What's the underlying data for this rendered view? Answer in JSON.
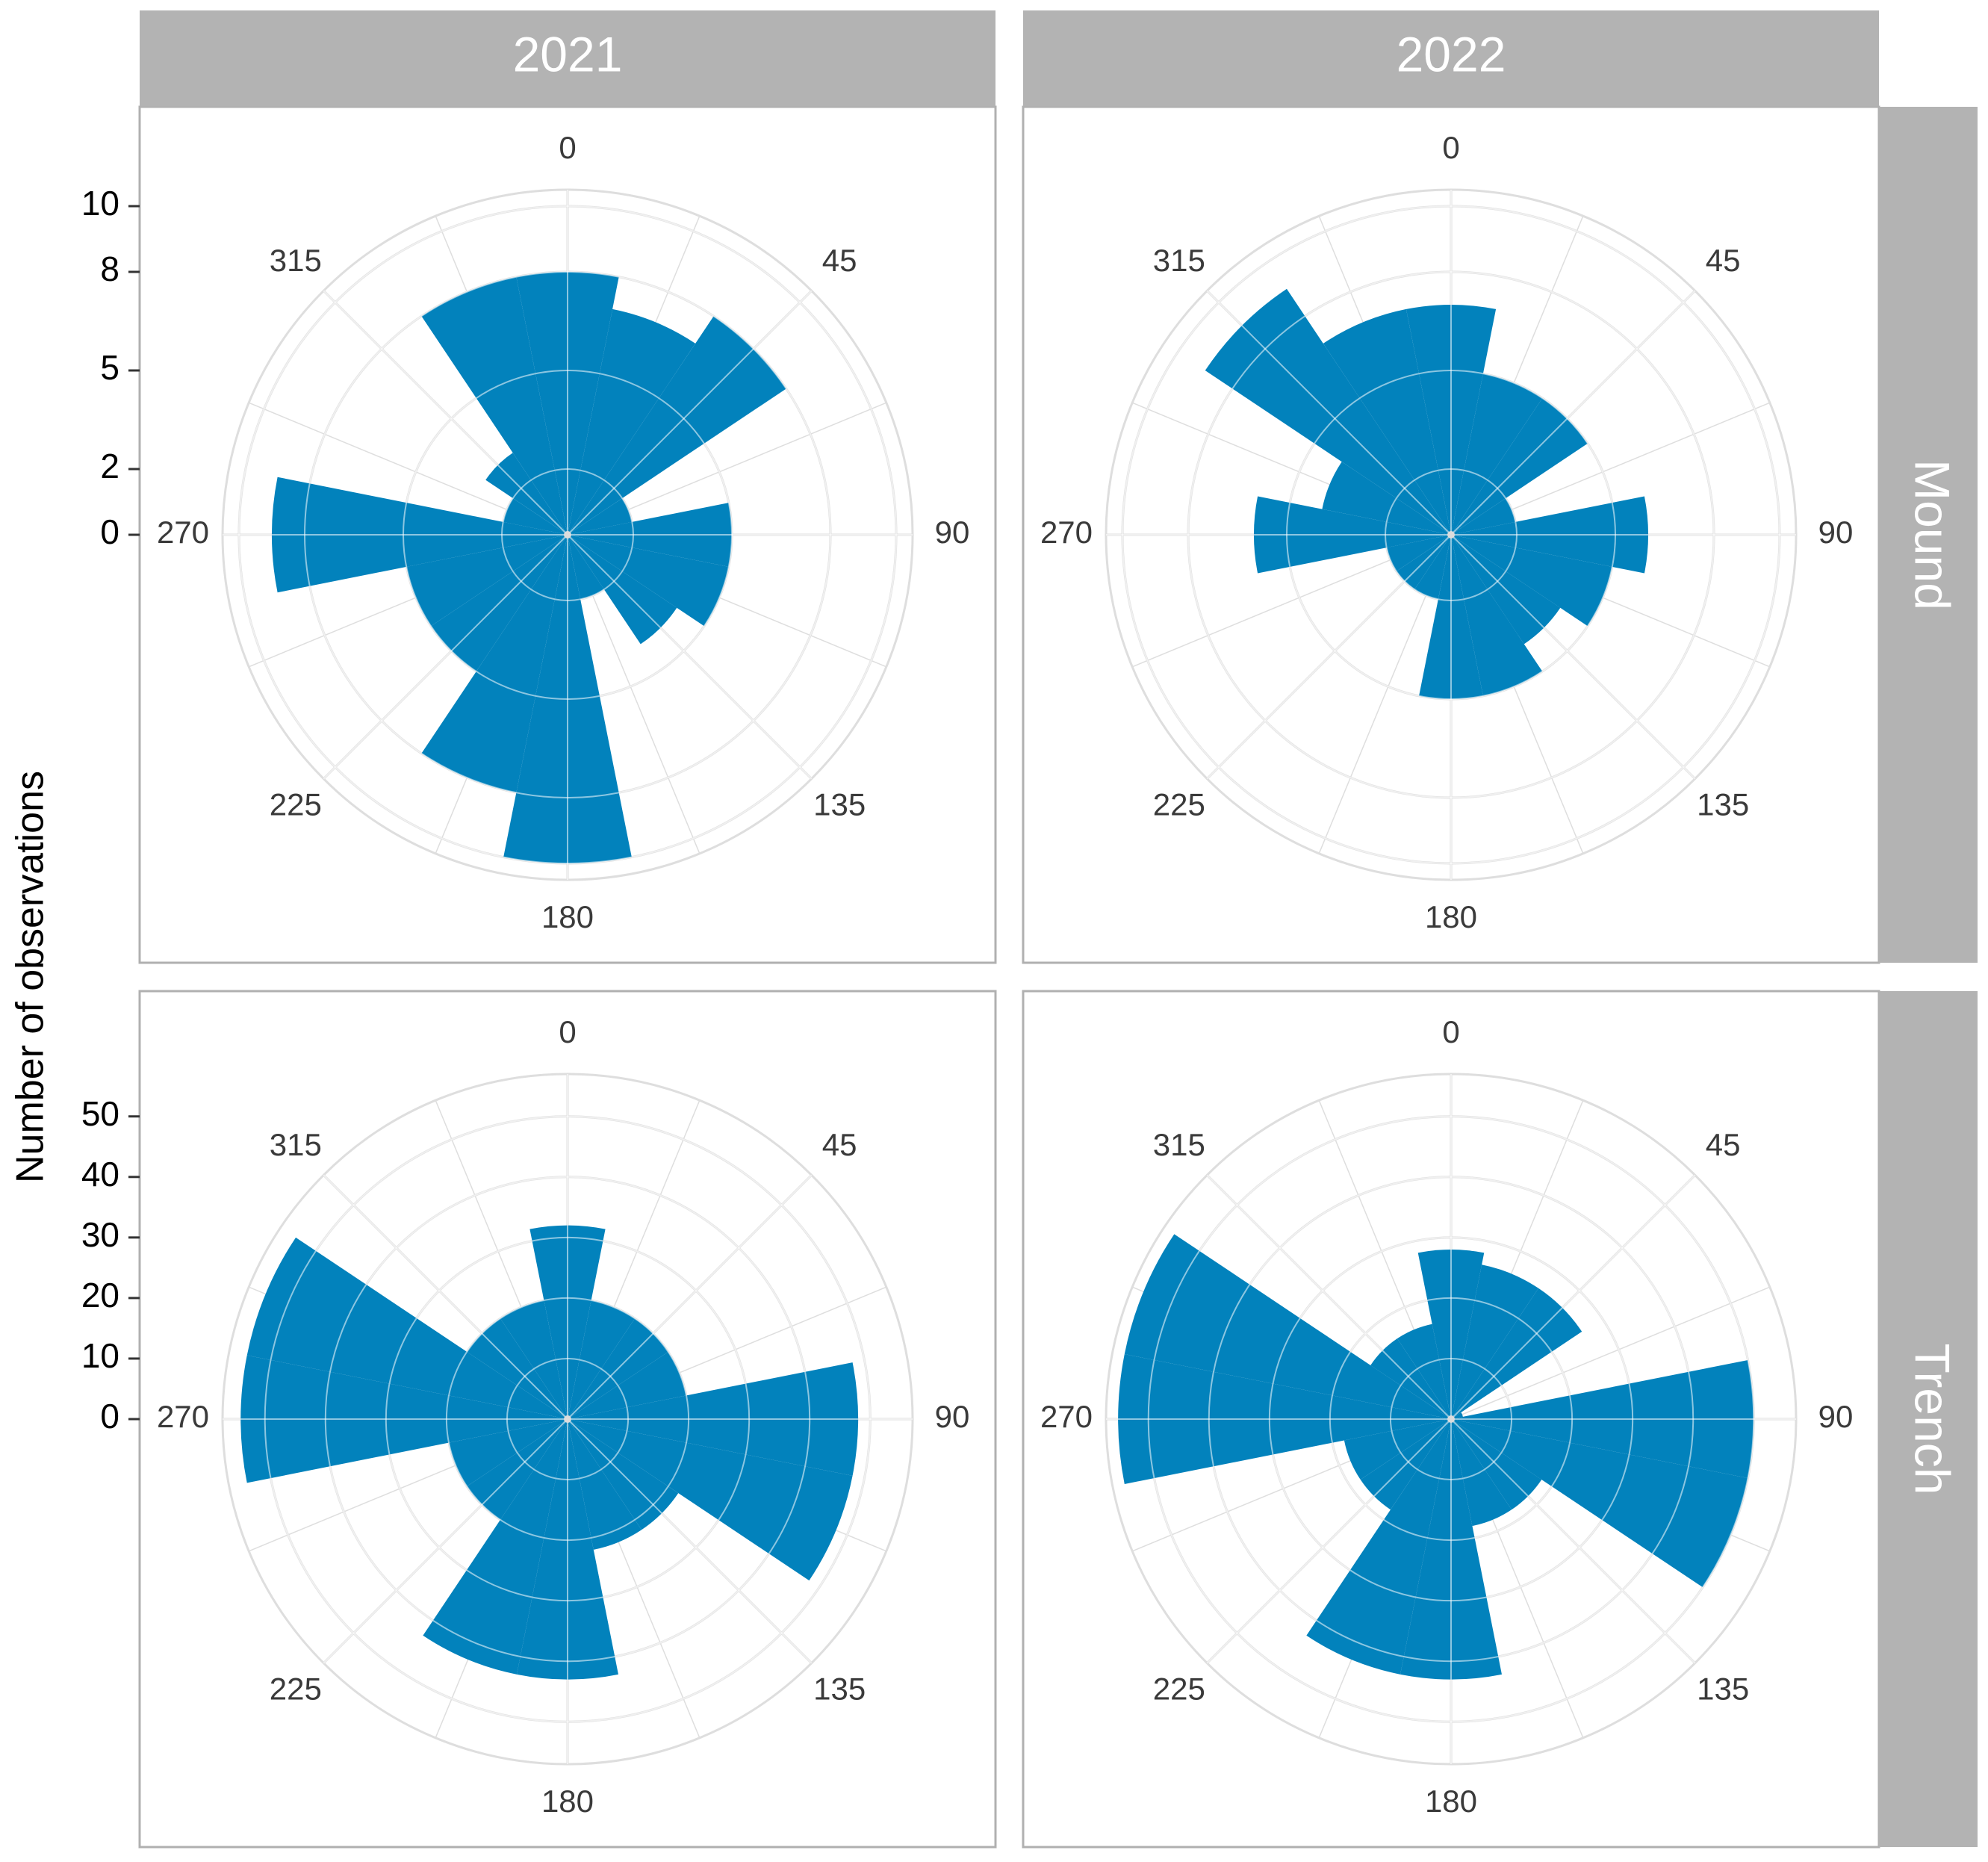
{
  "figure": {
    "ylabel": "Number of observations",
    "bar_color": "#0282BC",
    "strip_color": "#B3B3B3",
    "grid_color": "#DEDEDE",
    "panel_border_color": "#B0B0B0",
    "column_strips": [
      "2021",
      "2022"
    ],
    "row_strips": [
      "Mound",
      "Trench"
    ]
  },
  "chart_data": [
    {
      "type": "polar-bar",
      "column": "2021",
      "row": "Mound",
      "angle_unit": "degrees",
      "angle_ticks": [
        0,
        45,
        90,
        135,
        180,
        225,
        270,
        315
      ],
      "radial_ticks": [
        0,
        2,
        5,
        8,
        10
      ],
      "radial_tick_labels": [
        "0",
        "2",
        "5",
        "8",
        "10"
      ],
      "rlim": [
        0,
        10.5
      ],
      "grid": true,
      "bin_width_deg": 22.5,
      "bin_centers_deg": [
        0,
        22.5,
        45,
        67.5,
        90,
        112.5,
        135,
        157.5,
        180,
        202.5,
        225,
        247.5,
        270,
        292.5,
        315,
        337.5
      ],
      "values": [
        8,
        7,
        8,
        2,
        5,
        5,
        4,
        2,
        10,
        8,
        5,
        5,
        9,
        2,
        3,
        8
      ]
    },
    {
      "type": "polar-bar",
      "column": "2022",
      "row": "Mound",
      "angle_unit": "degrees",
      "angle_ticks": [
        0,
        45,
        90,
        135,
        180,
        225,
        270,
        315
      ],
      "radial_ticks": [
        0,
        2,
        5,
        8,
        10
      ],
      "radial_tick_labels": [
        "0",
        "2",
        "5",
        "8",
        "10"
      ],
      "rlim": [
        0,
        10.5
      ],
      "grid": true,
      "bin_width_deg": 22.5,
      "bin_centers_deg": [
        0,
        22.5,
        45,
        67.5,
        90,
        112.5,
        135,
        157.5,
        180,
        202.5,
        225,
        247.5,
        270,
        292.5,
        315,
        337.5
      ],
      "values": [
        7,
        5,
        5,
        2,
        6,
        5,
        4,
        5,
        5,
        2,
        2,
        2,
        6,
        4,
        9,
        7
      ]
    },
    {
      "type": "polar-bar",
      "column": "2021",
      "row": "Trench",
      "angle_unit": "degrees",
      "angle_ticks": [
        0,
        45,
        90,
        135,
        180,
        225,
        270,
        315
      ],
      "radial_ticks": [
        0,
        10,
        20,
        30,
        40,
        50
      ],
      "radial_tick_labels": [
        "0",
        "10",
        "20",
        "30",
        "40",
        "50"
      ],
      "rlim": [
        0,
        57
      ],
      "grid": true,
      "bin_width_deg": 22.5,
      "bin_centers_deg": [
        0,
        22.5,
        45,
        67.5,
        90,
        112.5,
        135,
        157.5,
        180,
        202.5,
        225,
        247.5,
        270,
        292.5,
        315,
        337.5
      ],
      "values": [
        32,
        20,
        20,
        20,
        48,
        48,
        22,
        22,
        43,
        43,
        20,
        20,
        54,
        54,
        20,
        20
      ]
    },
    {
      "type": "polar-bar",
      "column": "2022",
      "row": "Trench",
      "angle_unit": "degrees",
      "angle_ticks": [
        0,
        45,
        90,
        135,
        180,
        225,
        270,
        315
      ],
      "radial_ticks": [
        0,
        10,
        20,
        30,
        40,
        50
      ],
      "radial_tick_labels": [
        "0",
        "10",
        "20",
        "30",
        "40",
        "50"
      ],
      "rlim": [
        0,
        57
      ],
      "grid": true,
      "bin_width_deg": 22.5,
      "bin_centers_deg": [
        0,
        22.5,
        45,
        67.5,
        90,
        112.5,
        135,
        157.5,
        180,
        202.5,
        225,
        247.5,
        270,
        292.5,
        315,
        337.5
      ],
      "values": [
        28,
        26,
        26,
        2,
        50,
        50,
        18,
        18,
        43,
        43,
        18,
        18,
        55,
        55,
        16,
        16
      ]
    }
  ]
}
